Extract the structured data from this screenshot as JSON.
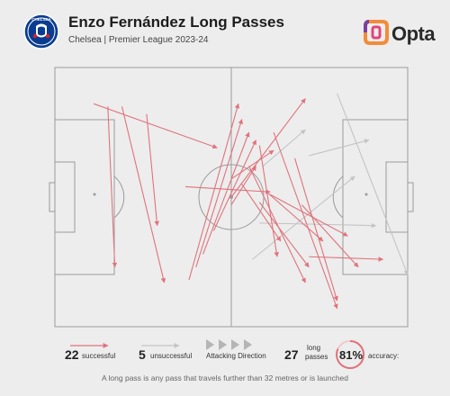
{
  "header": {
    "title": "Enzo Fernández Long Passes",
    "subtitle": "Chelsea | Premier League 2023-24",
    "brand": "Opta",
    "crest_text": "CHELSEA"
  },
  "legend": {
    "successful_count": "22",
    "successful_label": "successful",
    "unsuccessful_count": "5",
    "unsuccessful_label": "unsuccessful",
    "direction_label": "Attacking Direction",
    "total_count": "27",
    "total_label_line1": "long",
    "total_label_line2": "passes",
    "accuracy_value": "81%",
    "accuracy_label": "accuracy:"
  },
  "footer": {
    "note": "A long pass is any pass that travels further than 32 metres or is launched"
  },
  "colors": {
    "successful": "#e0737c",
    "unsuccessful": "#c4c4c4",
    "pitch_line": "#9a9a9a",
    "brand_orange": "#f28c3a",
    "brand_purple": "#7b3fa0"
  },
  "chart_data": {
    "type": "scatter",
    "description_units": "pitch coordinates, 0-100 along length (attacking left to right), 0-100 across width (top to bottom)",
    "passes": [
      {
        "x1": 11,
        "y1": 14,
        "x2": 46,
        "y2": 31,
        "outcome": "successful"
      },
      {
        "x1": 15,
        "y1": 15,
        "x2": 17,
        "y2": 77,
        "outcome": "successful"
      },
      {
        "x1": 19,
        "y1": 15,
        "x2": 31,
        "y2": 83,
        "outcome": "successful"
      },
      {
        "x1": 26,
        "y1": 18,
        "x2": 29,
        "y2": 61,
        "outcome": "successful"
      },
      {
        "x1": 37,
        "y1": 46,
        "x2": 61,
        "y2": 48,
        "outcome": "successful"
      },
      {
        "x1": 38,
        "y1": 82,
        "x2": 52,
        "y2": 14,
        "outcome": "successful"
      },
      {
        "x1": 40,
        "y1": 77,
        "x2": 53,
        "y2": 20,
        "outcome": "successful"
      },
      {
        "x1": 42,
        "y1": 72,
        "x2": 55,
        "y2": 25,
        "outcome": "successful"
      },
      {
        "x1": 45,
        "y1": 63,
        "x2": 57,
        "y2": 28,
        "outcome": "successful"
      },
      {
        "x1": 50,
        "y1": 53,
        "x2": 57,
        "y2": 38,
        "outcome": "successful"
      },
      {
        "x1": 50,
        "y1": 43,
        "x2": 62,
        "y2": 32,
        "outcome": "successful"
      },
      {
        "x1": 50,
        "y1": 50,
        "x2": 71,
        "y2": 12,
        "outcome": "successful"
      },
      {
        "x1": 53,
        "y1": 45,
        "x2": 64,
        "y2": 67,
        "outcome": "successful"
      },
      {
        "x1": 55,
        "y1": 38,
        "x2": 71,
        "y2": 83,
        "outcome": "successful"
      },
      {
        "x1": 58,
        "y1": 52,
        "x2": 72,
        "y2": 77,
        "outcome": "successful"
      },
      {
        "x1": 58,
        "y1": 30,
        "x2": 63,
        "y2": 73,
        "outcome": "successful"
      },
      {
        "x1": 60,
        "y1": 48,
        "x2": 76,
        "y2": 67,
        "outcome": "successful"
      },
      {
        "x1": 61,
        "y1": 49,
        "x2": 83,
        "y2": 65,
        "outcome": "successful"
      },
      {
        "x1": 62,
        "y1": 25,
        "x2": 80,
        "y2": 93,
        "outcome": "successful"
      },
      {
        "x1": 68,
        "y1": 35,
        "x2": 80,
        "y2": 90,
        "outcome": "successful"
      },
      {
        "x1": 70,
        "y1": 53,
        "x2": 86,
        "y2": 77,
        "outcome": "successful"
      },
      {
        "x1": 72,
        "y1": 73,
        "x2": 93,
        "y2": 74,
        "outcome": "successful"
      },
      {
        "x1": 56,
        "y1": 74,
        "x2": 85,
        "y2": 42,
        "outcome": "unsuccessful"
      },
      {
        "x1": 58,
        "y1": 60,
        "x2": 91,
        "y2": 61,
        "outcome": "unsuccessful"
      },
      {
        "x1": 59,
        "y1": 38,
        "x2": 71,
        "y2": 24,
        "outcome": "unsuccessful"
      },
      {
        "x1": 80,
        "y1": 10,
        "x2": 100,
        "y2": 80,
        "outcome": "unsuccessful"
      },
      {
        "x1": 72,
        "y1": 34,
        "x2": 89,
        "y2": 28,
        "outcome": "unsuccessful"
      }
    ]
  }
}
